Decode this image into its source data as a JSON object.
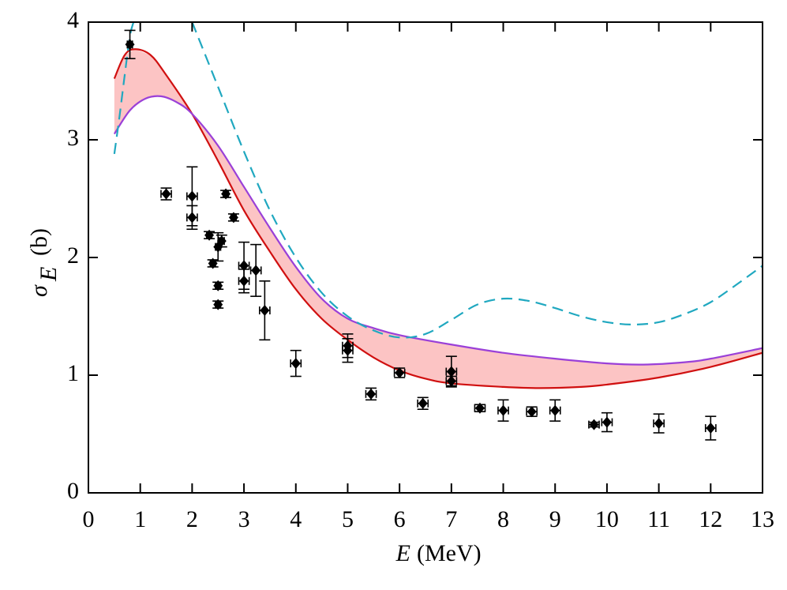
{
  "chart_data": {
    "type": "line",
    "x_label": {
      "symbol": "E",
      "unit": "(MeV)"
    },
    "y_label": {
      "symbol": "σ",
      "subscript": "E",
      "unit": "(b)"
    },
    "xlim": [
      0,
      13
    ],
    "xticks": [
      0,
      1,
      2,
      3,
      4,
      5,
      6,
      7,
      8,
      9,
      10,
      11,
      12,
      13
    ],
    "ylim": [
      0,
      4
    ],
    "yticks": [
      0,
      1,
      2,
      3,
      4
    ],
    "band_color": "#fcc4c4",
    "series": [
      {
        "color": "#d01010",
        "dash": false,
        "x": [
          0.5,
          0.7,
          0.9,
          1.2,
          1.5,
          2,
          2.5,
          3,
          3.5,
          4,
          4.5,
          5,
          5.5,
          6,
          6.5,
          7,
          8,
          8.7,
          9.5,
          10,
          11,
          12,
          13
        ],
        "values": [
          3.52,
          3.72,
          3.77,
          3.72,
          3.55,
          3.22,
          2.82,
          2.4,
          2.05,
          1.73,
          1.48,
          1.3,
          1.15,
          1.04,
          0.97,
          0.93,
          0.9,
          0.89,
          0.9,
          0.92,
          0.98,
          1.07,
          1.19
        ]
      },
      {
        "color": "#9a40d8",
        "dash": false,
        "x": [
          0.5,
          0.8,
          1.1,
          1.4,
          1.7,
          2,
          2.5,
          3,
          3.5,
          4,
          4.5,
          5,
          5.5,
          6,
          7,
          8,
          9,
          10,
          10.7,
          11.5,
          12,
          13
        ],
        "values": [
          3.05,
          3.25,
          3.35,
          3.37,
          3.32,
          3.22,
          2.95,
          2.6,
          2.25,
          1.92,
          1.65,
          1.48,
          1.4,
          1.34,
          1.26,
          1.19,
          1.14,
          1.1,
          1.09,
          1.11,
          1.14,
          1.23
        ]
      },
      {
        "color": "#20a8c0",
        "dash": true,
        "x": [
          0.5,
          0.6,
          0.7,
          0.8,
          0.87,
          null,
          2,
          2.5,
          3,
          3.5,
          4,
          4.5,
          5,
          5.5,
          6,
          6.5,
          7,
          7.5,
          8,
          8.5,
          9,
          9.5,
          10,
          10.5,
          11,
          11.5,
          12,
          12.5,
          13
        ],
        "values": [
          2.88,
          3.2,
          3.55,
          3.88,
          4.0,
          null,
          4.0,
          3.45,
          2.9,
          2.4,
          2.0,
          1.7,
          1.5,
          1.38,
          1.32,
          1.35,
          1.47,
          1.6,
          1.65,
          1.63,
          1.57,
          1.5,
          1.45,
          1.43,
          1.45,
          1.52,
          1.62,
          1.77,
          1.93
        ]
      }
    ],
    "band_between": [
      0,
      1
    ],
    "points": {
      "color": "#000000",
      "x": [
        0.8,
        1.5,
        2.0,
        2.0,
        2.33,
        2.4,
        2.5,
        2.5,
        2.5,
        2.57,
        2.65,
        2.8,
        3.0,
        3.0,
        3.23,
        3.4,
        4.0,
        5.0,
        5.0,
        5.45,
        6.0,
        6.45,
        7.0,
        7.0,
        7.55,
        8.0,
        8.55,
        9.0,
        9.75,
        10.0,
        11.0,
        12.0
      ],
      "y": [
        3.81,
        2.54,
        2.52,
        2.34,
        2.19,
        1.95,
        2.09,
        1.76,
        1.6,
        2.14,
        2.54,
        2.34,
        1.93,
        1.8,
        1.89,
        1.55,
        1.1,
        1.25,
        1.21,
        0.84,
        1.02,
        0.76,
        1.03,
        0.95,
        0.72,
        0.7,
        0.69,
        0.7,
        0.58,
        0.6,
        0.59,
        0.55
      ],
      "yerr": [
        0.12,
        0.05,
        0.25,
        0.1,
        0.03,
        0.03,
        0.12,
        0.03,
        0.03,
        0.05,
        0.03,
        0.03,
        0.2,
        0.1,
        0.22,
        0.25,
        0.11,
        0.1,
        0.1,
        0.05,
        0.04,
        0.05,
        0.13,
        0.04,
        0.03,
        0.09,
        0.04,
        0.09,
        0.02,
        0.08,
        0.08,
        0.1
      ],
      "xerr": [
        0.05,
        0.1,
        0.1,
        0.1,
        0.05,
        0.05,
        0.05,
        0.05,
        0.05,
        0.05,
        0.05,
        0.05,
        0.1,
        0.1,
        0.1,
        0.1,
        0.1,
        0.1,
        0.1,
        0.1,
        0.1,
        0.1,
        0.1,
        0.1,
        0.1,
        0.1,
        0.1,
        0.1,
        0.1,
        0.1,
        0.1,
        0.1
      ]
    }
  }
}
